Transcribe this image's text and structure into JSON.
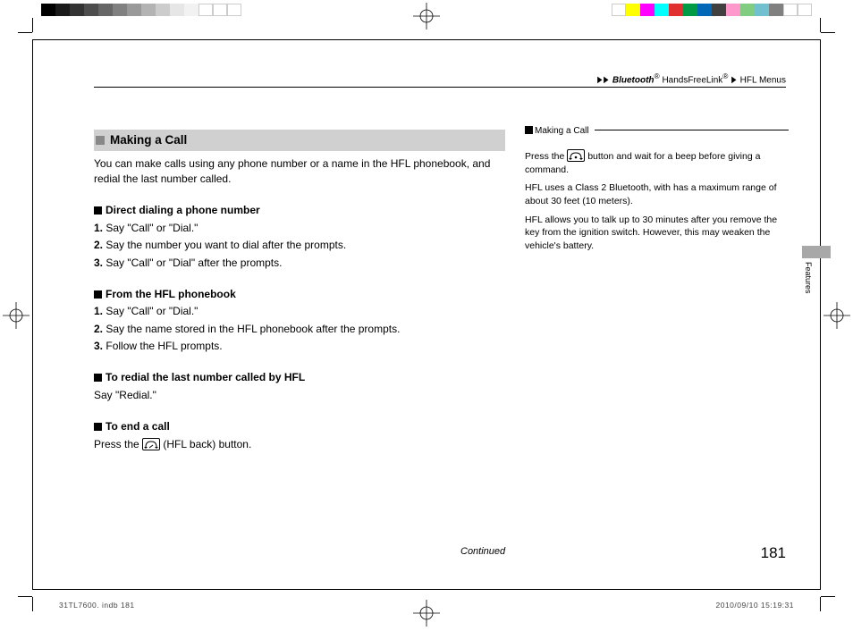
{
  "calibration": {
    "left_swatches": [
      "#000000",
      "#1a1a1a",
      "#333333",
      "#4d4d4d",
      "#666666",
      "#808080",
      "#999999",
      "#b3b3b3",
      "#cccccc",
      "#e6e6e6",
      "#f2f2f2",
      "#ffffff",
      "#ffffff",
      "#ffffff"
    ],
    "right_swatches": [
      "#ffffff",
      "#ffff00",
      "#ff00ff",
      "#00ffff",
      "#e03030",
      "#009944",
      "#0068b7",
      "#404040",
      "#ff99cc",
      "#80cc80",
      "#70c0d0",
      "#808080",
      "#ffffff",
      "#ffffff"
    ]
  },
  "breadcrumb": {
    "b1": "Bluetooth",
    "reg": "®",
    "b2": " HandsFreeLink",
    "b3": "HFL Menus"
  },
  "main": {
    "title": "Making a Call",
    "intro": "You can make calls using any phone number or a name in the HFL phonebook, and redial the last number called.",
    "s1_head": "Direct dialing a phone number",
    "s1_1": "Say \"Call\" or \"Dial.\"",
    "s1_2": "Say the number you want to dial after the prompts.",
    "s1_3": "Say \"Call\" or \"Dial\" after the prompts.",
    "s2_head": "From the HFL phonebook",
    "s2_1": "Say \"Call\" or \"Dial.\"",
    "s2_2": "Say the name stored in the HFL phonebook after the prompts.",
    "s2_3": "Follow the HFL prompts.",
    "s3_head": "To redial the last number called by HFL",
    "s3_1": "Say \"Redial.\"",
    "s4_head": "To end a call",
    "s4_1a": "Press the ",
    "s4_1b": " (HFL back) button."
  },
  "sidebar": {
    "title": "Making a Call",
    "p1a": "Press the ",
    "p1b": " button and wait for a beep before giving a command.",
    "p2": "HFL uses a Class 2 Bluetooth, with has a maximum range of about 30 feet (10 meters).",
    "p3": "HFL allows you to talk up to 30 minutes after you remove the key from the ignition switch. However, this may weaken the vehicle's battery."
  },
  "sidetab": "Features",
  "continued": "Continued",
  "pagenum": "181",
  "meta_left": "31TL7600. indb   181",
  "meta_right": "2010/09/10   15:19:31"
}
